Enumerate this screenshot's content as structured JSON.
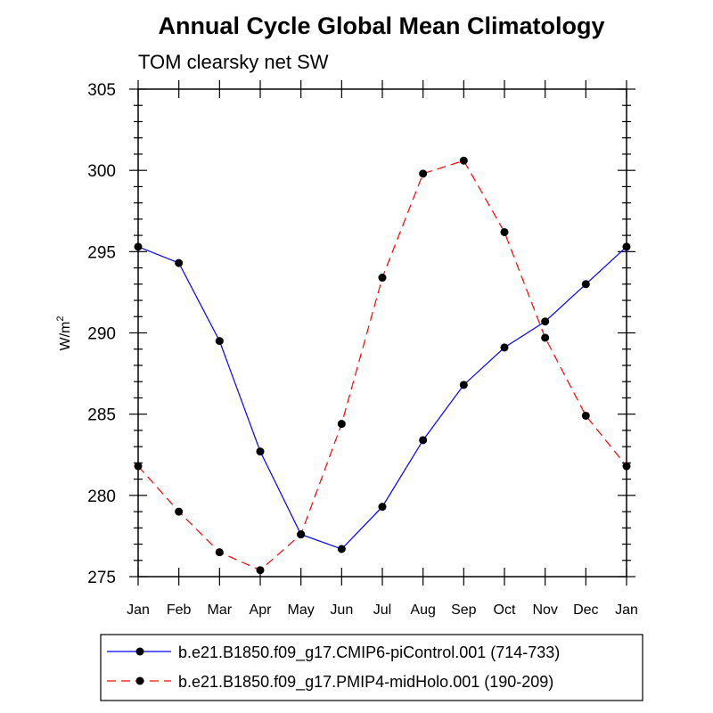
{
  "chart_data": {
    "type": "line",
    "title": "Annual Cycle Global Mean Climatology",
    "subtitle": "TOM clearsky net SW",
    "ylabel_base": "W/m",
    "ylabel_sup": "2",
    "xlabel": "",
    "categories": [
      "Jan",
      "Feb",
      "Mar",
      "Apr",
      "May",
      "Jun",
      "Jul",
      "Aug",
      "Sep",
      "Oct",
      "Nov",
      "Dec",
      "Jan"
    ],
    "ylim": [
      275,
      305
    ],
    "yticks": [
      275,
      280,
      285,
      290,
      295,
      300,
      305
    ],
    "grid": false,
    "legend_position": "bottom",
    "series": [
      {
        "name": "b.e21.B1850.f09_g17.CMIP6-piControl.001 (714-733)",
        "color": "#0000ff",
        "dash": "solid",
        "values": [
          295.3,
          294.3,
          289.5,
          282.7,
          277.6,
          276.7,
          279.3,
          283.4,
          286.8,
          289.1,
          290.7,
          293.0,
          295.3
        ]
      },
      {
        "name": "b.e21.B1850.f09_g17.PMIP4-midHolo.001 (190-209)",
        "color": "#ff0000",
        "dash": "dashed",
        "values": [
          281.8,
          279.0,
          276.5,
          275.4,
          277.6,
          284.4,
          293.4,
          299.8,
          300.6,
          296.2,
          289.7,
          284.9,
          281.8
        ]
      }
    ]
  }
}
